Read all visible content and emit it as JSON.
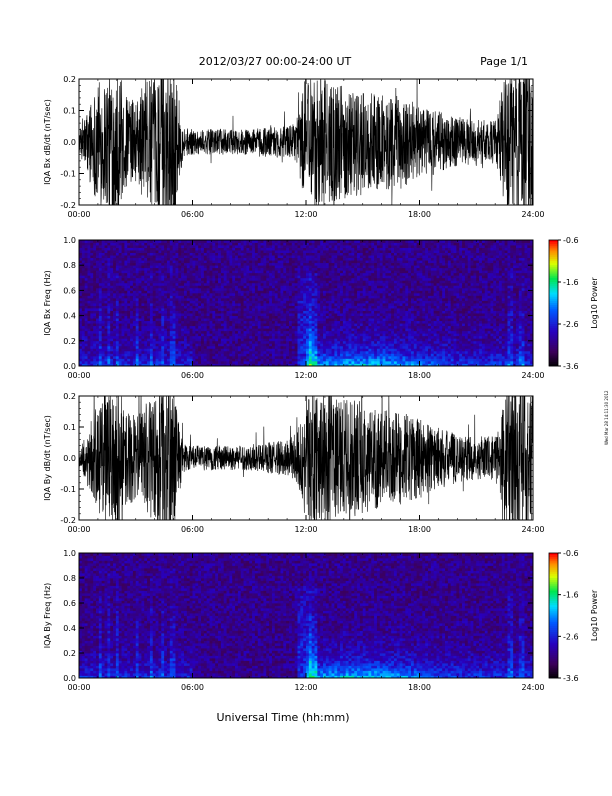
{
  "header": {
    "title": "2012/03/27  00:00-24:00 UT",
    "page": "Page 1/1"
  },
  "footer": {
    "xlabel": "Universal Time (hh:mm)",
    "side_note": "Wed Mar 28 14:11:30 2012"
  },
  "chart_data": [
    {
      "type": "line",
      "title": "",
      "xlabel": "",
      "ylabel": "IQA Bx dB/dt (nT/sec)",
      "xlim": [
        "00:00",
        "24:00"
      ],
      "ylim": [
        -0.2,
        0.2
      ],
      "x_ticks": [
        "00:00",
        "06:00",
        "12:00",
        "18:00",
        "24:00"
      ],
      "y_ticks": [
        "-0.2",
        "-0.1",
        "0.0",
        "0.1",
        "0.2"
      ],
      "color": "#000000",
      "envelope_hours": [
        0,
        1,
        1.5,
        2,
        2.5,
        3,
        3.5,
        4,
        4.5,
        5,
        5.5,
        6,
        7,
        8,
        9,
        10,
        11,
        11.5,
        12,
        13,
        14,
        15,
        16,
        17,
        18,
        19,
        20,
        21,
        22,
        22.5,
        23,
        23.5,
        24
      ],
      "envelope_amplitude": [
        0.03,
        0.2,
        0.22,
        0.25,
        0.15,
        0.13,
        0.2,
        0.2,
        0.25,
        0.25,
        0.05,
        0.04,
        0.04,
        0.04,
        0.04,
        0.05,
        0.05,
        0.06,
        0.22,
        0.2,
        0.18,
        0.17,
        0.15,
        0.15,
        0.12,
        0.1,
        0.08,
        0.07,
        0.07,
        0.2,
        0.3,
        0.3,
        0.25
      ]
    },
    {
      "type": "heatmap",
      "title": "",
      "xlabel": "",
      "ylabel": "IQA Bx Freq (Hz)",
      "xlim": [
        "00:00",
        "24:00"
      ],
      "ylim": [
        0.0,
        1.0
      ],
      "x_ticks": [
        "00:00",
        "06:00",
        "12:00",
        "18:00",
        "24:00"
      ],
      "y_ticks": [
        "0.0",
        "0.2",
        "0.4",
        "0.6",
        "0.8",
        "1.0"
      ],
      "colorbar": {
        "label": "Log10 Power",
        "range": [
          -3.6,
          -0.6
        ],
        "ticks": [
          "-0.6",
          "-1.6",
          "-2.6",
          "-3.6"
        ]
      }
    },
    {
      "type": "line",
      "title": "",
      "xlabel": "",
      "ylabel": "IQA By dB/dt (nT/sec)",
      "xlim": [
        "00:00",
        "24:00"
      ],
      "ylim": [
        -0.2,
        0.2
      ],
      "x_ticks": [
        "00:00",
        "06:00",
        "12:00",
        "18:00",
        "24:00"
      ],
      "y_ticks": [
        "-0.2",
        "-0.1",
        "0.0",
        "0.1",
        "0.2"
      ],
      "color": "#000000",
      "envelope_hours": [
        0,
        1,
        1.5,
        2,
        2.5,
        3,
        3.5,
        4,
        4.5,
        5,
        5.5,
        6,
        7,
        8,
        9,
        10,
        11,
        11.5,
        12,
        13,
        14,
        15,
        16,
        17,
        18,
        19,
        20,
        21,
        22,
        22.5,
        23,
        23.5,
        24
      ],
      "envelope_amplitude": [
        0.02,
        0.18,
        0.22,
        0.25,
        0.15,
        0.14,
        0.18,
        0.2,
        0.25,
        0.25,
        0.05,
        0.04,
        0.04,
        0.04,
        0.04,
        0.05,
        0.06,
        0.08,
        0.22,
        0.22,
        0.2,
        0.18,
        0.16,
        0.15,
        0.13,
        0.1,
        0.08,
        0.07,
        0.07,
        0.2,
        0.3,
        0.3,
        0.25
      ]
    },
    {
      "type": "heatmap",
      "title": "",
      "xlabel": "",
      "ylabel": "IQA By Freq (Hz)",
      "xlim": [
        "00:00",
        "24:00"
      ],
      "ylim": [
        0.0,
        1.0
      ],
      "x_ticks": [
        "00:00",
        "06:00",
        "12:00",
        "18:00",
        "24:00"
      ],
      "y_ticks": [
        "0.0",
        "0.2",
        "0.4",
        "0.6",
        "0.8",
        "1.0"
      ],
      "colorbar": {
        "label": "Log10 Power",
        "range": [
          -3.6,
          -0.6
        ],
        "ticks": [
          "-0.6",
          "-1.6",
          "-2.6",
          "-3.6"
        ]
      }
    }
  ]
}
